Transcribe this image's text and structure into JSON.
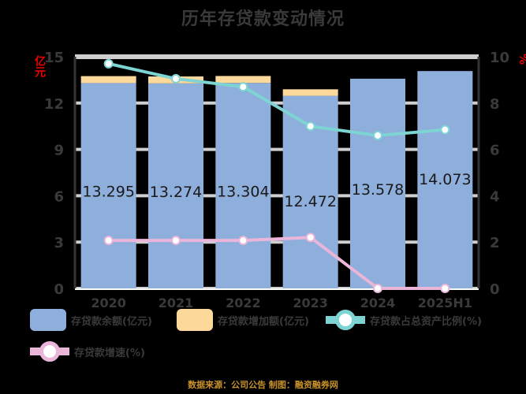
{
  "title": "历年存贷款变动情况",
  "left_axis_label": "亿元",
  "right_axis_label": "%",
  "legend": [
    {
      "label": "存贷款余额(亿元)",
      "type": "bar",
      "color": "#8eaedb"
    },
    {
      "label": "存贷款增加额(亿元)",
      "type": "bar",
      "color": "#fdd89b"
    },
    {
      "label": "存贷款占总资产比例(%)",
      "type": "line",
      "color": "#7ed3d3"
    },
    {
      "label": "存贷款增速(%)",
      "type": "line",
      "color": "#e9b6d9"
    }
  ],
  "source": "数据来源：公司公告 制图：融资融券网",
  "chart_data": {
    "type": "bar",
    "title": "历年存贷款变动情况",
    "categories": [
      "2020",
      "2021",
      "2022",
      "2023",
      "2024",
      "2025H1"
    ],
    "left_axis": {
      "label": "亿元",
      "ylim": [
        0,
        15
      ],
      "ticks": [
        0,
        3,
        6,
        9,
        12,
        15
      ]
    },
    "right_axis": {
      "label": "%",
      "ylim": [
        0,
        10
      ],
      "ticks": [
        0,
        2,
        4,
        6,
        8,
        10
      ]
    },
    "grid": true,
    "legend_position": "bottom",
    "series": [
      {
        "name": "存贷款余额(亿元)",
        "type": "bar",
        "stack": "a",
        "axis": "left",
        "color": "#8eaedb",
        "values": [
          13.295,
          13.274,
          13.304,
          12.472,
          13.578,
          14.073
        ],
        "data_labels": [
          "13.295",
          "13.274",
          "13.304",
          "12.472",
          "13.578",
          "14.073"
        ]
      },
      {
        "name": "存贷款增加额(亿元)",
        "type": "bar",
        "stack": "a",
        "axis": "left",
        "color": "#fdd89b",
        "values": [
          0.45,
          0.45,
          0.45,
          0.42,
          0,
          0
        ]
      },
      {
        "name": "存贷款占总资产比例(%)",
        "type": "line",
        "axis": "right",
        "color": "#7ed3d3",
        "values": [
          9.7,
          9.05,
          8.7,
          7.0,
          6.6,
          6.85
        ]
      },
      {
        "name": "存贷款增速(%)",
        "type": "line",
        "axis": "right",
        "color": "#e9b6d9",
        "values": [
          2.07,
          2.07,
          2.07,
          2.2,
          0,
          0
        ]
      }
    ]
  }
}
